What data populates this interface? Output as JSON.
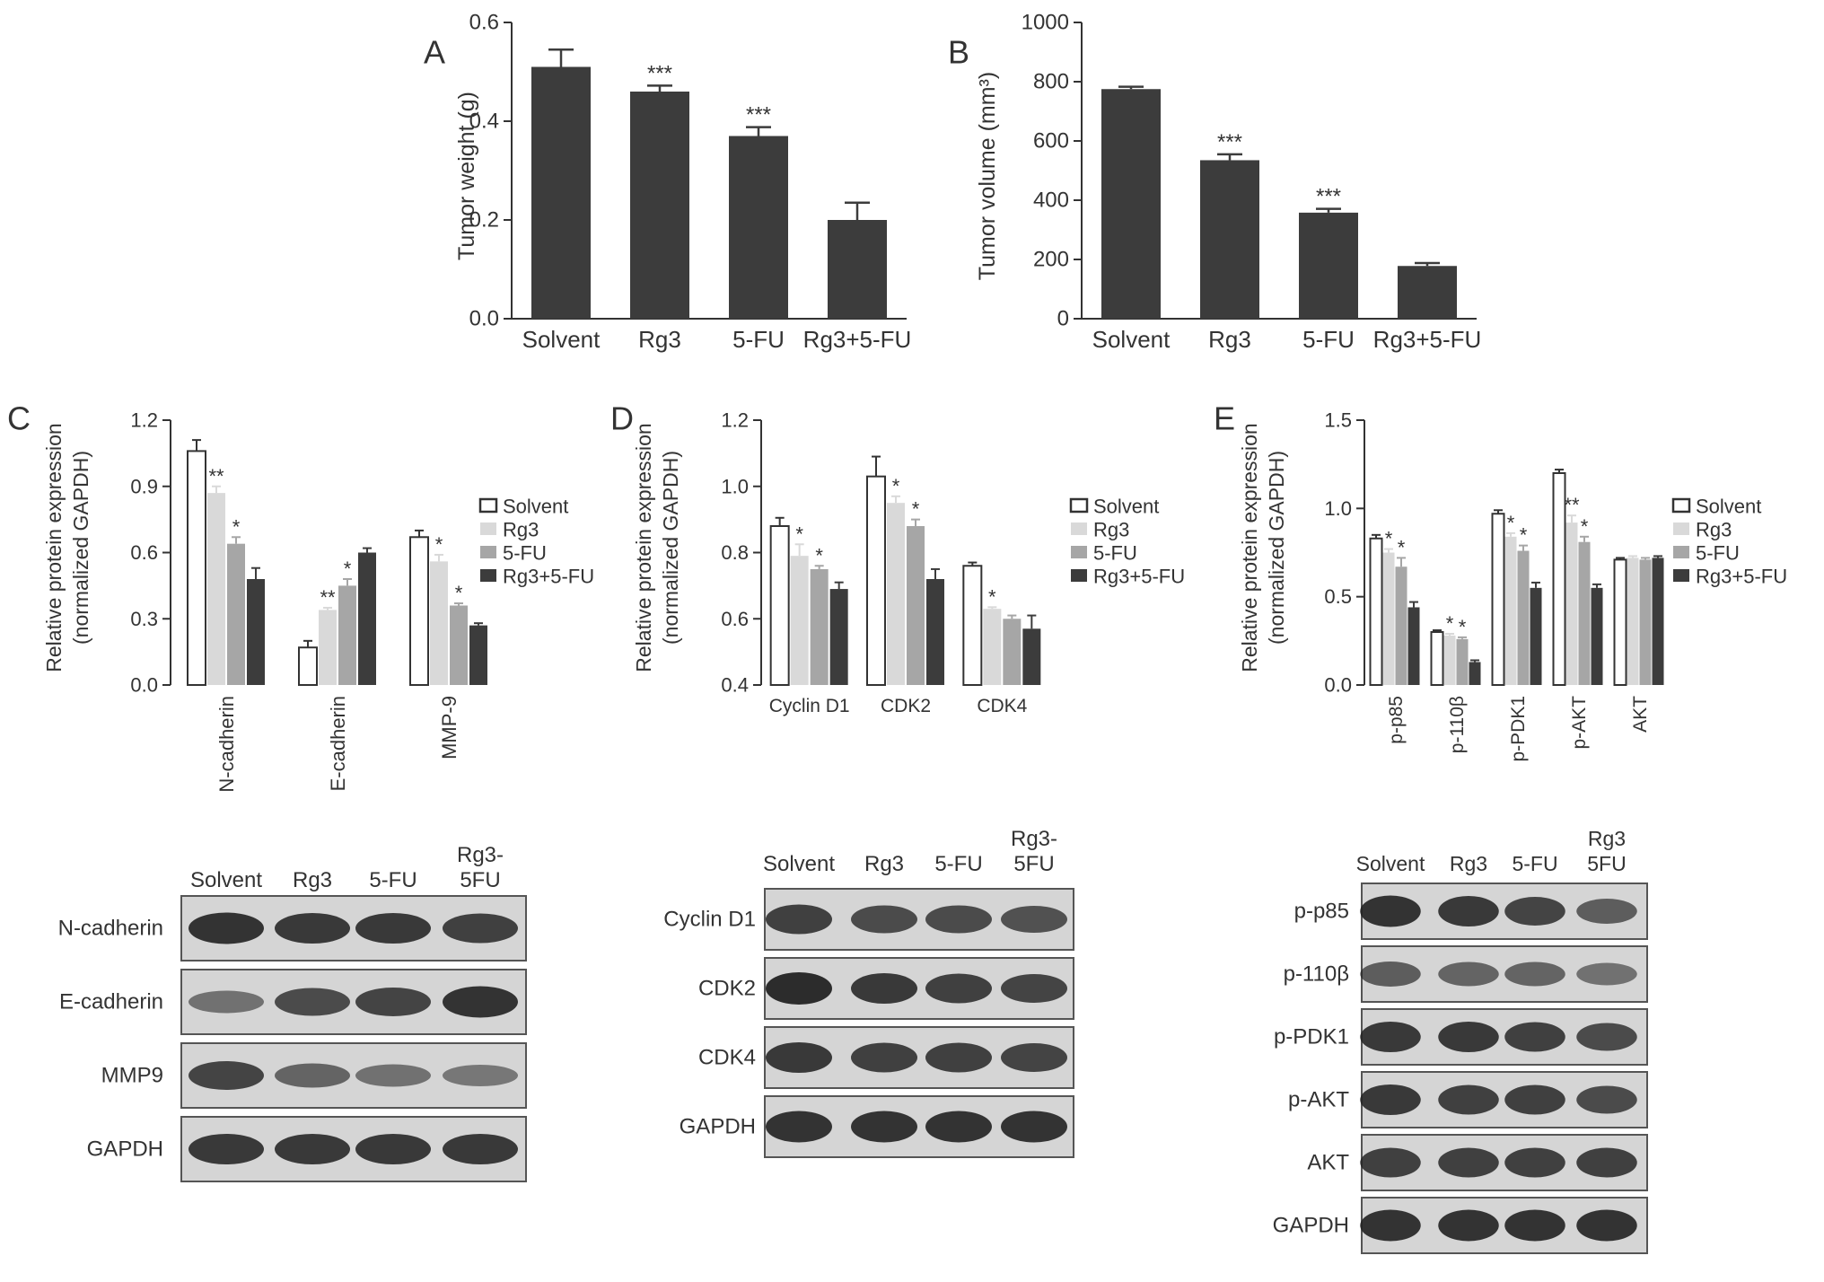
{
  "colors": {
    "solvent": "#ffffff",
    "rg3": "#d9d9d9",
    "fu": "#a6a6a6",
    "combo": "#3c3c3c",
    "single_bar": "#3c3c3c",
    "axis": "#333333",
    "blot_bg": "#d5d5d5",
    "blot_band": "#232323"
  },
  "chart_data": [
    {
      "panel": "A",
      "type": "bar",
      "categories": [
        "Solvent",
        "Rg3",
        "5-FU",
        "Rg3+5-FU"
      ],
      "values": [
        0.51,
        0.46,
        0.37,
        0.2
      ],
      "errors": [
        0.035,
        0.012,
        0.018,
        0.035
      ],
      "significance": [
        "",
        "***",
        "***",
        ""
      ],
      "ylabel": "Tumor weight (g)",
      "ylim": [
        0,
        0.6
      ],
      "yticks": [
        "0.0",
        "0.2",
        "0.4",
        "0.6"
      ]
    },
    {
      "panel": "B",
      "type": "bar",
      "categories": [
        "Solvent",
        "Rg3",
        "5-FU",
        "Rg3+5-FU"
      ],
      "values": [
        775,
        535,
        358,
        178
      ],
      "errors": [
        8,
        20,
        13,
        10
      ],
      "significance": [
        "",
        "***",
        "***",
        ""
      ],
      "ylabel": "Tumor volume (mm³)",
      "ylim": [
        0,
        1000
      ],
      "yticks": [
        "0",
        "200",
        "400",
        "600",
        "800",
        "1000"
      ]
    },
    {
      "panel": "C",
      "type": "bar",
      "categories": [
        "N-cadherin",
        "E-cadherin",
        "MMP-9"
      ],
      "series": [
        {
          "name": "Solvent",
          "values": [
            1.06,
            0.17,
            0.67
          ],
          "errors": [
            0.05,
            0.03,
            0.03
          ],
          "significance": [
            "",
            "",
            ""
          ]
        },
        {
          "name": "Rg3",
          "values": [
            0.87,
            0.34,
            0.56
          ],
          "errors": [
            0.03,
            0.01,
            0.03
          ],
          "significance": [
            "**",
            "**",
            "*"
          ]
        },
        {
          "name": "5-FU",
          "values": [
            0.64,
            0.45,
            0.36
          ],
          "errors": [
            0.03,
            0.03,
            0.01
          ],
          "significance": [
            "*",
            "*",
            "*"
          ]
        },
        {
          "name": "Rg3+5-FU",
          "values": [
            0.48,
            0.6,
            0.27
          ],
          "errors": [
            0.05,
            0.02,
            0.01
          ],
          "significance": [
            "",
            "",
            ""
          ]
        }
      ],
      "ylabel": [
        "Relative protein expression",
        "(normalized GAPDH)"
      ],
      "ylim": [
        0,
        1.2
      ],
      "yticks": [
        "0.0",
        "0.3",
        "0.6",
        "0.9",
        "1.2"
      ],
      "legend": "right"
    },
    {
      "panel": "D",
      "type": "bar",
      "categories": [
        "Cyclin D1",
        "CDK2",
        "CDK4"
      ],
      "series": [
        {
          "name": "Solvent",
          "values": [
            0.88,
            1.03,
            0.76
          ],
          "errors": [
            0.025,
            0.06,
            0.01
          ],
          "significance": [
            "",
            "",
            ""
          ]
        },
        {
          "name": "Rg3",
          "values": [
            0.79,
            0.95,
            0.63
          ],
          "errors": [
            0.035,
            0.02,
            0.005
          ],
          "significance": [
            "*",
            "*",
            "*"
          ]
        },
        {
          "name": "5-FU",
          "values": [
            0.75,
            0.88,
            0.6
          ],
          "errors": [
            0.01,
            0.02,
            0.01
          ],
          "significance": [
            "*",
            "*",
            ""
          ]
        },
        {
          "name": "Rg3+5-FU",
          "values": [
            0.69,
            0.72,
            0.57
          ],
          "errors": [
            0.02,
            0.03,
            0.04
          ],
          "significance": [
            "",
            "",
            ""
          ]
        }
      ],
      "ylabel": [
        "Relative protein expression",
        "(normalized GAPDH)"
      ],
      "ylim": [
        0.4,
        1.2
      ],
      "yticks": [
        "0.4",
        "0.6",
        "0.8",
        "1.0",
        "1.2"
      ],
      "legend": "right"
    },
    {
      "panel": "E",
      "type": "bar",
      "categories": [
        "p-p85",
        "p-110β",
        "p-PDK1",
        "p-AKT",
        "AKT"
      ],
      "series": [
        {
          "name": "Solvent",
          "values": [
            0.83,
            0.3,
            0.97,
            1.2,
            0.71
          ],
          "errors": [
            0.02,
            0.01,
            0.02,
            0.02,
            0.01
          ],
          "significance": [
            "",
            "",
            "",
            "",
            ""
          ]
        },
        {
          "name": "Rg3",
          "values": [
            0.75,
            0.28,
            0.84,
            0.92,
            0.72
          ],
          "errors": [
            0.02,
            0.01,
            0.02,
            0.04,
            0.01
          ],
          "significance": [
            "*",
            "*",
            "*",
            "**",
            ""
          ]
        },
        {
          "name": "5-FU",
          "values": [
            0.67,
            0.26,
            0.76,
            0.81,
            0.71
          ],
          "errors": [
            0.05,
            0.01,
            0.03,
            0.03,
            0.01
          ],
          "significance": [
            "*",
            "*",
            "*",
            "*",
            ""
          ]
        },
        {
          "name": "Rg3+5-FU",
          "values": [
            0.44,
            0.13,
            0.55,
            0.55,
            0.72
          ],
          "errors": [
            0.03,
            0.01,
            0.03,
            0.02,
            0.01
          ],
          "significance": [
            "",
            "",
            "",
            "",
            ""
          ]
        }
      ],
      "ylabel": [
        "Relative protein expression",
        "(normalized GAPDH)"
      ],
      "ylim": [
        0,
        1.5
      ],
      "yticks": [
        "0.0",
        "0.5",
        "1.0",
        "1.5"
      ],
      "legend": "right"
    }
  ],
  "blots": [
    {
      "panel": "C",
      "lanes": [
        "Solvent",
        "Rg3",
        "5-FU",
        [
          "Rg3-",
          "5FU"
        ]
      ],
      "rows": [
        {
          "label": "N-cadherin",
          "intensity": [
            0.95,
            0.9,
            0.9,
            0.85
          ]
        },
        {
          "label": "E-cadherin",
          "intensity": [
            0.45,
            0.75,
            0.8,
            0.95
          ]
        },
        {
          "label": "MMP9",
          "intensity": [
            0.8,
            0.55,
            0.45,
            0.4
          ]
        },
        {
          "label": "GAPDH",
          "intensity": [
            0.9,
            0.9,
            0.9,
            0.9
          ]
        }
      ]
    },
    {
      "panel": "D",
      "lanes": [
        "Solvent",
        "Rg3",
        "5-FU",
        [
          "Rg3-",
          "5FU"
        ]
      ],
      "rows": [
        {
          "label": "Cyclin D1",
          "intensity": [
            0.85,
            0.75,
            0.75,
            0.7
          ]
        },
        {
          "label": "CDK2",
          "intensity": [
            1.0,
            0.9,
            0.85,
            0.8
          ]
        },
        {
          "label": "CDK4",
          "intensity": [
            0.9,
            0.85,
            0.85,
            0.8
          ]
        },
        {
          "label": "GAPDH",
          "intensity": [
            0.95,
            0.95,
            0.95,
            0.95
          ]
        }
      ]
    },
    {
      "panel": "E",
      "lanes": [
        "Solvent",
        "Rg3",
        "5-FU",
        [
          "Rg3",
          "5FU"
        ]
      ],
      "rows": [
        {
          "label": "p-p85",
          "intensity": [
            0.95,
            0.9,
            0.8,
            0.6
          ]
        },
        {
          "label": "p-110β",
          "intensity": [
            0.6,
            0.55,
            0.55,
            0.45
          ]
        },
        {
          "label": "p-PDK1",
          "intensity": [
            0.9,
            0.9,
            0.85,
            0.75
          ]
        },
        {
          "label": "p-AKT",
          "intensity": [
            0.9,
            0.85,
            0.85,
            0.75
          ]
        },
        {
          "label": "AKT",
          "intensity": [
            0.85,
            0.85,
            0.85,
            0.85
          ]
        },
        {
          "label": "GAPDH",
          "intensity": [
            0.95,
            0.95,
            0.95,
            0.95
          ]
        }
      ]
    }
  ]
}
